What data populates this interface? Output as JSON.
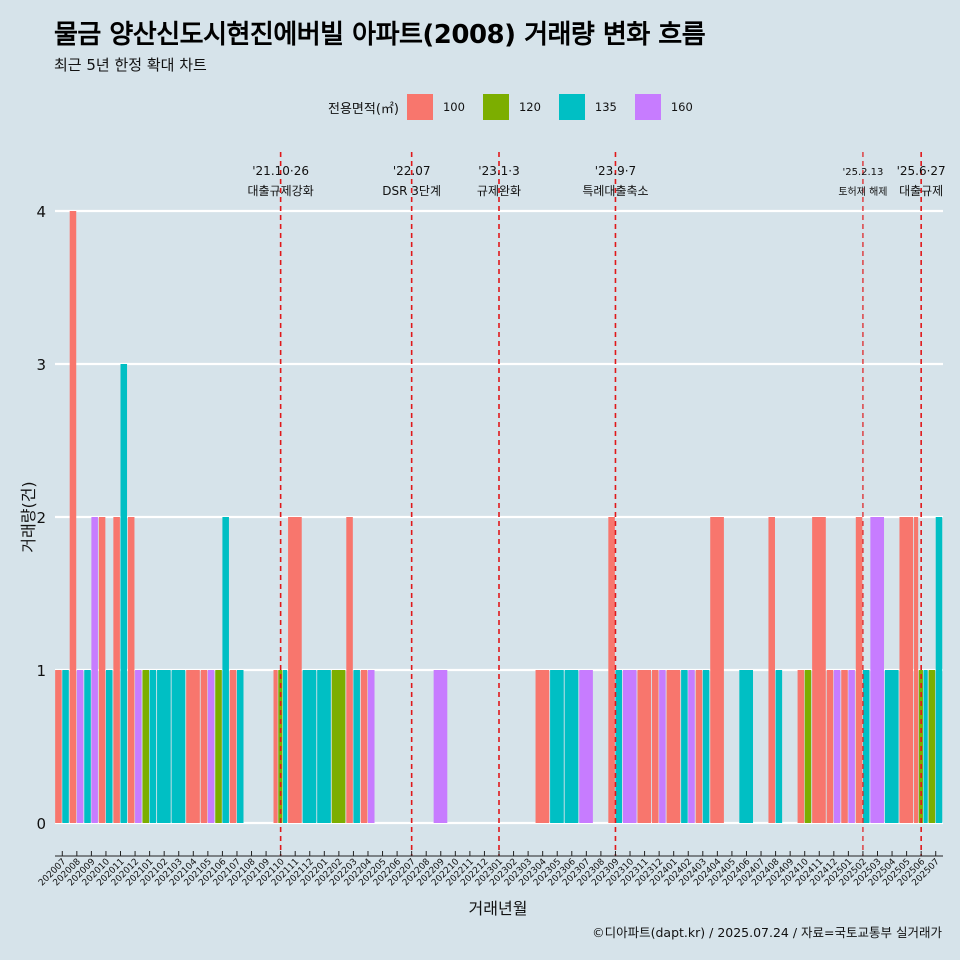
{
  "title": "물금 양산신도시현진에버빌 아파트(2008) 거래량 변화 흐름",
  "subtitle": "최근 5년 한정 확대 차트",
  "caption": "©디아파트(dapt.kr) / 2025.07.24 / 자료=국토교통부 실거래가",
  "legend": {
    "title": "전용면적(㎡)",
    "items": [
      {
        "label": "100",
        "color": "#F8766D"
      },
      {
        "label": "120",
        "color": "#7CAE00"
      },
      {
        "label": "135",
        "color": "#00BFC4"
      },
      {
        "label": "160",
        "color": "#C77CFF"
      }
    ]
  },
  "chart_data": {
    "type": "bar",
    "xlabel": "거래년월",
    "ylabel": "거래량(건)",
    "ylim": [
      0,
      4
    ],
    "yticks": [
      0,
      1,
      2,
      3,
      4
    ],
    "categories": [
      "202007",
      "202008",
      "202009",
      "202010",
      "202011",
      "202012",
      "202101",
      "202102",
      "202103",
      "202104",
      "202105",
      "202106",
      "202107",
      "202108",
      "202109",
      "202110",
      "202111",
      "202112",
      "202201",
      "202202",
      "202203",
      "202204",
      "202205",
      "202206",
      "202207",
      "202208",
      "202209",
      "202210",
      "202211",
      "202212",
      "202301",
      "202302",
      "202303",
      "202304",
      "202305",
      "202306",
      "202307",
      "202308",
      "202309",
      "202310",
      "202311",
      "202312",
      "202401",
      "202402",
      "202403",
      "202404",
      "202405",
      "202406",
      "202407",
      "202408",
      "202409",
      "202410",
      "202411",
      "202412",
      "202501",
      "202502",
      "202503",
      "202504",
      "202505",
      "202506",
      "202507"
    ],
    "series": [
      {
        "name": "100",
        "values": [
          1,
          4,
          0,
          2,
          2,
          2,
          0,
          0,
          0,
          1,
          1,
          0,
          1,
          0,
          0,
          1,
          2,
          0,
          0,
          0,
          2,
          1,
          0,
          0,
          0,
          0,
          0,
          0,
          0,
          0,
          0,
          0,
          0,
          1,
          0,
          0,
          0,
          0,
          2,
          0,
          1,
          1,
          1,
          0,
          1,
          2,
          0,
          0,
          0,
          2,
          0,
          1,
          2,
          1,
          1,
          2,
          0,
          0,
          2,
          2,
          0
        ]
      },
      {
        "name": "120",
        "values": [
          0,
          0,
          0,
          0,
          0,
          0,
          1,
          0,
          0,
          0,
          0,
          1,
          0,
          0,
          0,
          1,
          0,
          0,
          0,
          1,
          0,
          0,
          0,
          0,
          0,
          0,
          0,
          0,
          0,
          0,
          0,
          0,
          0,
          0,
          0,
          0,
          0,
          0,
          0,
          0,
          0,
          0,
          0,
          0,
          0,
          0,
          0,
          0,
          0,
          0,
          0,
          1,
          0,
          0,
          0,
          0,
          0,
          0,
          0,
          1,
          1
        ]
      },
      {
        "name": "135",
        "values": [
          1,
          0,
          1,
          1,
          3,
          0,
          1,
          1,
          1,
          0,
          0,
          2,
          1,
          0,
          0,
          1,
          0,
          1,
          1,
          0,
          1,
          0,
          0,
          0,
          0,
          0,
          0,
          0,
          0,
          0,
          0,
          0,
          0,
          0,
          1,
          1,
          0,
          0,
          1,
          0,
          0,
          0,
          0,
          1,
          1,
          0,
          0,
          1,
          0,
          1,
          0,
          0,
          0,
          0,
          0,
          1,
          0,
          1,
          0,
          1,
          2
        ]
      },
      {
        "name": "160",
        "values": [
          0,
          1,
          2,
          0,
          0,
          1,
          0,
          0,
          0,
          0,
          1,
          0,
          0,
          0,
          0,
          0,
          0,
          0,
          0,
          0,
          0,
          1,
          0,
          0,
          0,
          0,
          1,
          0,
          0,
          0,
          0,
          0,
          0,
          0,
          0,
          0,
          1,
          0,
          0,
          1,
          0,
          1,
          0,
          1,
          0,
          0,
          0,
          0,
          0,
          0,
          0,
          0,
          0,
          1,
          1,
          0,
          2,
          0,
          0,
          0,
          0
        ]
      }
    ],
    "annotations": [
      {
        "month": "202110",
        "date": "'21.10·26",
        "label": "대출규제강화"
      },
      {
        "month": "202207",
        "date": "'22.07",
        "label": "DSR 3단계"
      },
      {
        "month": "202301",
        "date": "'23.1·3",
        "label": "규제완화"
      },
      {
        "month": "202309",
        "date": "'23.9·7",
        "label": "특례대출축소"
      },
      {
        "month": "202502",
        "date": "'25.2.13",
        "label": "토허제 해제"
      },
      {
        "month": "202506",
        "date": "'25.6·27",
        "label": "대출규제"
      }
    ],
    "grid": true,
    "legend_position": "top"
  }
}
